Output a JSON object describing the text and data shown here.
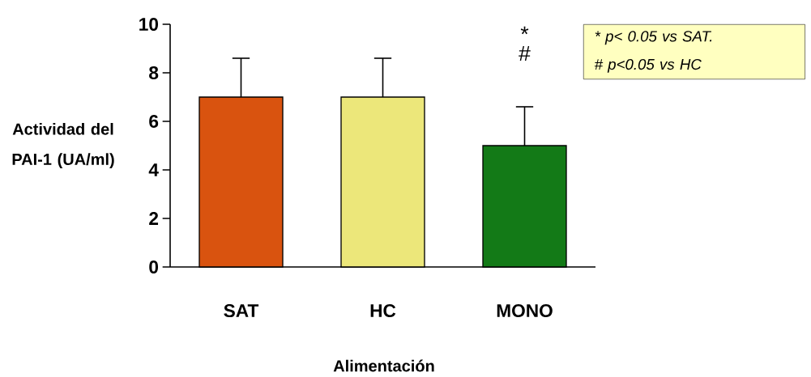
{
  "chart_data": {
    "type": "bar",
    "xlabel": "Alimentación",
    "ylabel": "Actividad del PAI-1 (UA/ml)",
    "categories": [
      "SAT",
      "HC",
      "MONO"
    ],
    "values": [
      7,
      7,
      5
    ],
    "errors": [
      1.6,
      1.6,
      1.6
    ],
    "colors": [
      "#d9530f",
      "#ece77a",
      "#137a17"
    ],
    "ylim": [
      0,
      10
    ],
    "yticks": [
      0,
      2,
      4,
      6,
      8,
      10
    ],
    "grid": false,
    "annotations": [
      "*",
      "#",
      "* p< 0.05 vs SAT.",
      "# p<0.05 vs HC"
    ]
  }
}
